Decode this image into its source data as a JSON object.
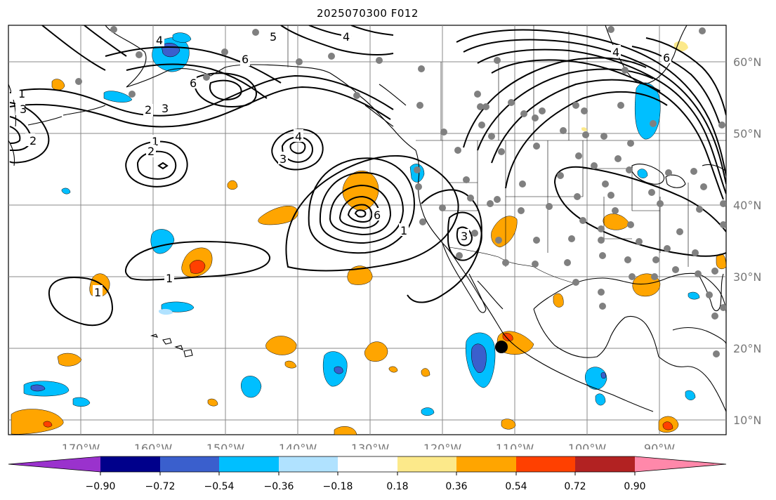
{
  "title": "2025070300 F012",
  "lon_ticks": [
    "170°W",
    "160°W",
    "150°W",
    "140°W",
    "130°W",
    "120°W",
    "110°W",
    "100°W",
    "90°W"
  ],
  "lat_ticks": [
    "60°N",
    "50°N",
    "40°N",
    "30°N",
    "20°N",
    "10°N"
  ],
  "colorbar": {
    "ticks": [
      "−0.90",
      "−0.72",
      "−0.54",
      "−0.36",
      "−0.18",
      "0.18",
      "0.36",
      "0.54",
      "0.72",
      "0.90"
    ],
    "colors": [
      "#9a32cd",
      "#00008b",
      "#3a5fcd",
      "#00bfff",
      "#b0e2ff",
      "#ffffff",
      "#fce98a",
      "#ffa500",
      "#ff4000",
      "#b22222",
      "#ff88aa"
    ]
  },
  "contour_labels": [
    "1",
    "2",
    "3",
    "4",
    "5",
    "6"
  ],
  "shade_colors": {
    "orange": "#ffa500",
    "red": "#ff4000",
    "cyan": "#00bfff",
    "blue": "#3a5fcd",
    "yellow": "#fce98a"
  },
  "station_marker_color": "#808080"
}
